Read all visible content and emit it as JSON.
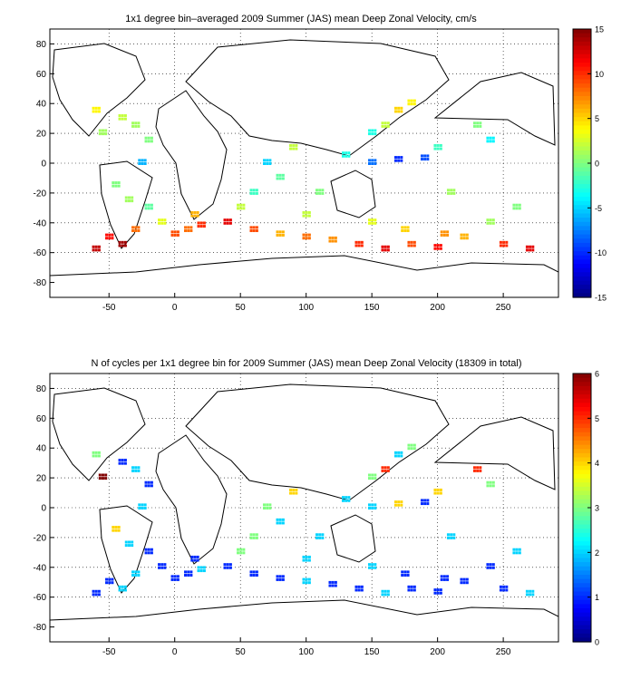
{
  "chart_data": [
    {
      "type": "heatmap",
      "title": "1x1 degree bin–averaged 2009 Summer (JAS) mean Deep Zonal Velocity, cm/s",
      "xlabel": "",
      "ylabel": "",
      "xlim": [
        -95,
        292
      ],
      "ylim": [
        -90,
        90
      ],
      "xticks": [
        -50,
        0,
        50,
        100,
        150,
        200,
        250
      ],
      "yticks": [
        -80,
        -60,
        -40,
        -20,
        0,
        20,
        40,
        60,
        80
      ],
      "grid": true,
      "colorbar": {
        "min": -15,
        "max": 15,
        "ticks": [
          -15,
          -10,
          -5,
          0,
          5,
          10,
          15
        ],
        "colormap": "jet"
      },
      "points": [
        [
          -40,
          30,
          2
        ],
        [
          -30,
          25,
          1
        ],
        [
          -20,
          15,
          0
        ],
        [
          -35,
          -25,
          1
        ],
        [
          -20,
          -30,
          -1
        ],
        [
          -10,
          -40,
          3
        ],
        [
          10,
          -45,
          8
        ],
        [
          20,
          -42,
          10
        ],
        [
          40,
          -40,
          12
        ],
        [
          60,
          -45,
          9
        ],
        [
          -50,
          -50,
          11
        ],
        [
          -40,
          -55,
          14
        ],
        [
          -60,
          -58,
          13
        ],
        [
          80,
          -48,
          6
        ],
        [
          100,
          -50,
          8
        ],
        [
          120,
          -52,
          7
        ],
        [
          140,
          -55,
          10
        ],
        [
          160,
          -58,
          12
        ],
        [
          180,
          -55,
          9
        ],
        [
          200,
          -57,
          11
        ],
        [
          220,
          -50,
          6
        ],
        [
          250,
          -55,
          10
        ],
        [
          270,
          -58,
          12
        ],
        [
          60,
          -20,
          -2
        ],
        [
          80,
          -10,
          -1
        ],
        [
          90,
          10,
          2
        ],
        [
          110,
          -20,
          0
        ],
        [
          150,
          20,
          -3
        ],
        [
          160,
          25,
          2
        ],
        [
          170,
          35,
          5
        ],
        [
          180,
          40,
          4
        ],
        [
          200,
          10,
          -2
        ],
        [
          210,
          -20,
          1
        ],
        [
          230,
          25,
          0
        ],
        [
          240,
          15,
          -4
        ],
        [
          150,
          0,
          -8
        ],
        [
          170,
          2,
          -10
        ],
        [
          190,
          3,
          -9
        ],
        [
          -25,
          0,
          -6
        ],
        [
          70,
          0,
          -5
        ],
        [
          130,
          5,
          -3
        ],
        [
          -45,
          -15,
          0
        ],
        [
          50,
          -30,
          2
        ],
        [
          150,
          -40,
          3
        ],
        [
          240,
          -40,
          1
        ],
        [
          260,
          -30,
          0
        ],
        [
          -55,
          20,
          1
        ],
        [
          -60,
          35,
          4
        ],
        [
          15,
          -35,
          6
        ],
        [
          100,
          -35,
          2
        ],
        [
          175,
          -45,
          5
        ],
        [
          205,
          -48,
          7
        ],
        [
          -30,
          -45,
          8
        ],
        [
          0,
          -48,
          9
        ]
      ]
    },
    {
      "type": "heatmap",
      "title": "N of cycles per 1x1 degree bin for 2009 Summer (JAS) mean Deep Zonal Velocity (18309 in total)",
      "xlabel": "",
      "ylabel": "",
      "xlim": [
        -95,
        292
      ],
      "ylim": [
        -90,
        90
      ],
      "xticks": [
        -50,
        0,
        50,
        100,
        150,
        200,
        250
      ],
      "yticks": [
        -80,
        -60,
        -40,
        -20,
        0,
        20,
        40,
        60,
        80
      ],
      "grid": true,
      "colorbar": {
        "min": 0,
        "max": 6,
        "ticks": [
          0,
          1,
          2,
          3,
          4,
          5,
          6
        ],
        "colormap": "jet"
      },
      "points": [
        [
          -40,
          30,
          1
        ],
        [
          -30,
          25,
          2
        ],
        [
          -20,
          15,
          1
        ],
        [
          -35,
          -25,
          2
        ],
        [
          -20,
          -30,
          1
        ],
        [
          -10,
          -40,
          1
        ],
        [
          10,
          -45,
          1
        ],
        [
          20,
          -42,
          2
        ],
        [
          40,
          -40,
          1
        ],
        [
          60,
          -45,
          1
        ],
        [
          -50,
          -50,
          1
        ],
        [
          -40,
          -55,
          2
        ],
        [
          -60,
          -58,
          1
        ],
        [
          80,
          -48,
          1
        ],
        [
          100,
          -50,
          2
        ],
        [
          120,
          -52,
          1
        ],
        [
          140,
          -55,
          1
        ],
        [
          160,
          -58,
          2
        ],
        [
          180,
          -55,
          1
        ],
        [
          200,
          -57,
          1
        ],
        [
          220,
          -50,
          1
        ],
        [
          250,
          -55,
          1
        ],
        [
          270,
          -58,
          2
        ],
        [
          60,
          -20,
          3
        ],
        [
          80,
          -10,
          2
        ],
        [
          90,
          10,
          4
        ],
        [
          110,
          -20,
          2
        ],
        [
          150,
          20,
          3
        ],
        [
          160,
          25,
          5
        ],
        [
          170,
          35,
          2
        ],
        [
          180,
          40,
          3
        ],
        [
          200,
          10,
          4
        ],
        [
          210,
          -20,
          2
        ],
        [
          230,
          25,
          5
        ],
        [
          240,
          15,
          3
        ],
        [
          150,
          0,
          2
        ],
        [
          170,
          2,
          4
        ],
        [
          190,
          3,
          1
        ],
        [
          -25,
          0,
          2
        ],
        [
          70,
          0,
          3
        ],
        [
          130,
          5,
          2
        ],
        [
          -45,
          -15,
          4
        ],
        [
          50,
          -30,
          3
        ],
        [
          150,
          -40,
          2
        ],
        [
          240,
          -40,
          1
        ],
        [
          260,
          -30,
          2
        ],
        [
          -55,
          20,
          6
        ],
        [
          -60,
          35,
          3
        ],
        [
          15,
          -35,
          1
        ],
        [
          100,
          -35,
          2
        ],
        [
          175,
          -45,
          1
        ],
        [
          205,
          -48,
          1
        ],
        [
          -30,
          -45,
          2
        ],
        [
          0,
          -48,
          1
        ]
      ]
    }
  ]
}
